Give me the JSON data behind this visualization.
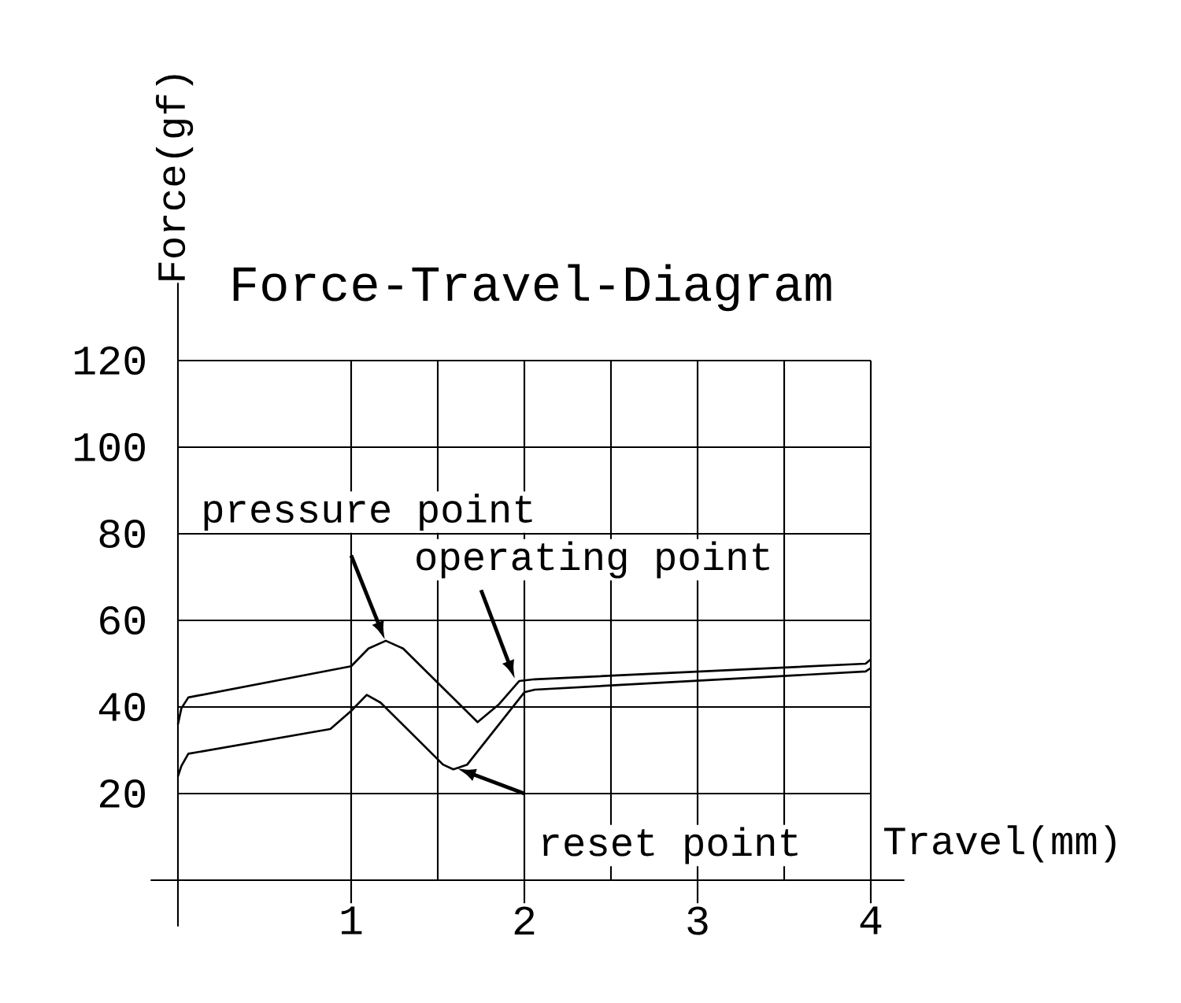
{
  "chart_data": {
    "type": "line",
    "title": "Force-Travel-Diagram",
    "xlabel": "Travel(mm)",
    "ylabel": "Force(gf)",
    "xlim": [
      0,
      4
    ],
    "ylim": [
      0,
      120
    ],
    "xticks": [
      1,
      2,
      3,
      4
    ],
    "yticks": [
      20,
      40,
      60,
      80,
      100,
      120
    ],
    "grid": true,
    "marker": "none",
    "line_style": "solid",
    "series": [
      {
        "color": "#000000",
        "x": [
          0,
          0.02,
          0.06,
          1.0,
          1.1,
          1.2,
          1.3,
          1.73,
          1.85,
          1.97,
          2.06,
          3.97,
          4.0
        ],
        "values": [
          36,
          39.7,
          42.2,
          49.4,
          53.5,
          55.3,
          53.5,
          36.5,
          40.5,
          46,
          46.4,
          50,
          51
        ]
      },
      {
        "color": "#000000",
        "x": [
          0,
          0.02,
          0.06,
          0.88,
          1.0,
          1.09,
          1.17,
          1.53,
          1.59,
          1.67,
          2.0,
          2.06,
          3.97,
          4.0
        ],
        "values": [
          24,
          26.4,
          29.2,
          34.9,
          39.1,
          42.8,
          41,
          26.7,
          25.6,
          26.7,
          43.4,
          44,
          48.2,
          49
        ]
      }
    ],
    "annotations": [
      {
        "text": "pressure point",
        "x": 1.2,
        "y": 55
      },
      {
        "text": "operating point",
        "x": 1.95,
        "y": 46
      },
      {
        "text": "reset point",
        "x": 1.6,
        "y": 26
      }
    ]
  }
}
